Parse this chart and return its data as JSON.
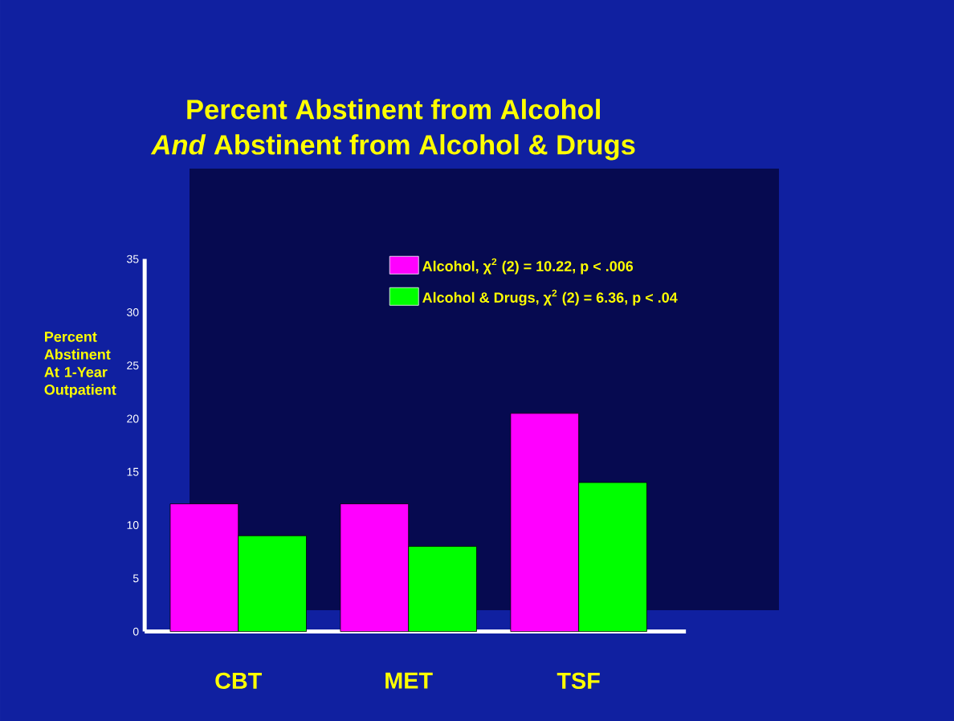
{
  "chart_data": {
    "type": "bar",
    "title": "Percent Abstinent from Alcohol\n*And* Abstinent from Alcohol & Drugs",
    "ylabel": "Percent Abstinent At 1-Year Outpatient",
    "categories": [
      "CBT",
      "MET",
      "TSF"
    ],
    "series": [
      {
        "name": "Alcohol, χ$^{2}$ (2) = 10.22, p < .006",
        "color": "#ff00ff",
        "values": [
          12,
          12,
          20.5
        ]
      },
      {
        "name": "Alcohol & Drugs, χ$^{2}$ (2) = 6.36, p < .04",
        "color": "#00ff00",
        "values": [
          9,
          8,
          14
        ]
      }
    ],
    "ylim": [
      0,
      35
    ],
    "yticks": [
      0,
      5,
      10,
      15,
      20,
      25,
      30,
      35
    ],
    "legend": "top right"
  }
}
